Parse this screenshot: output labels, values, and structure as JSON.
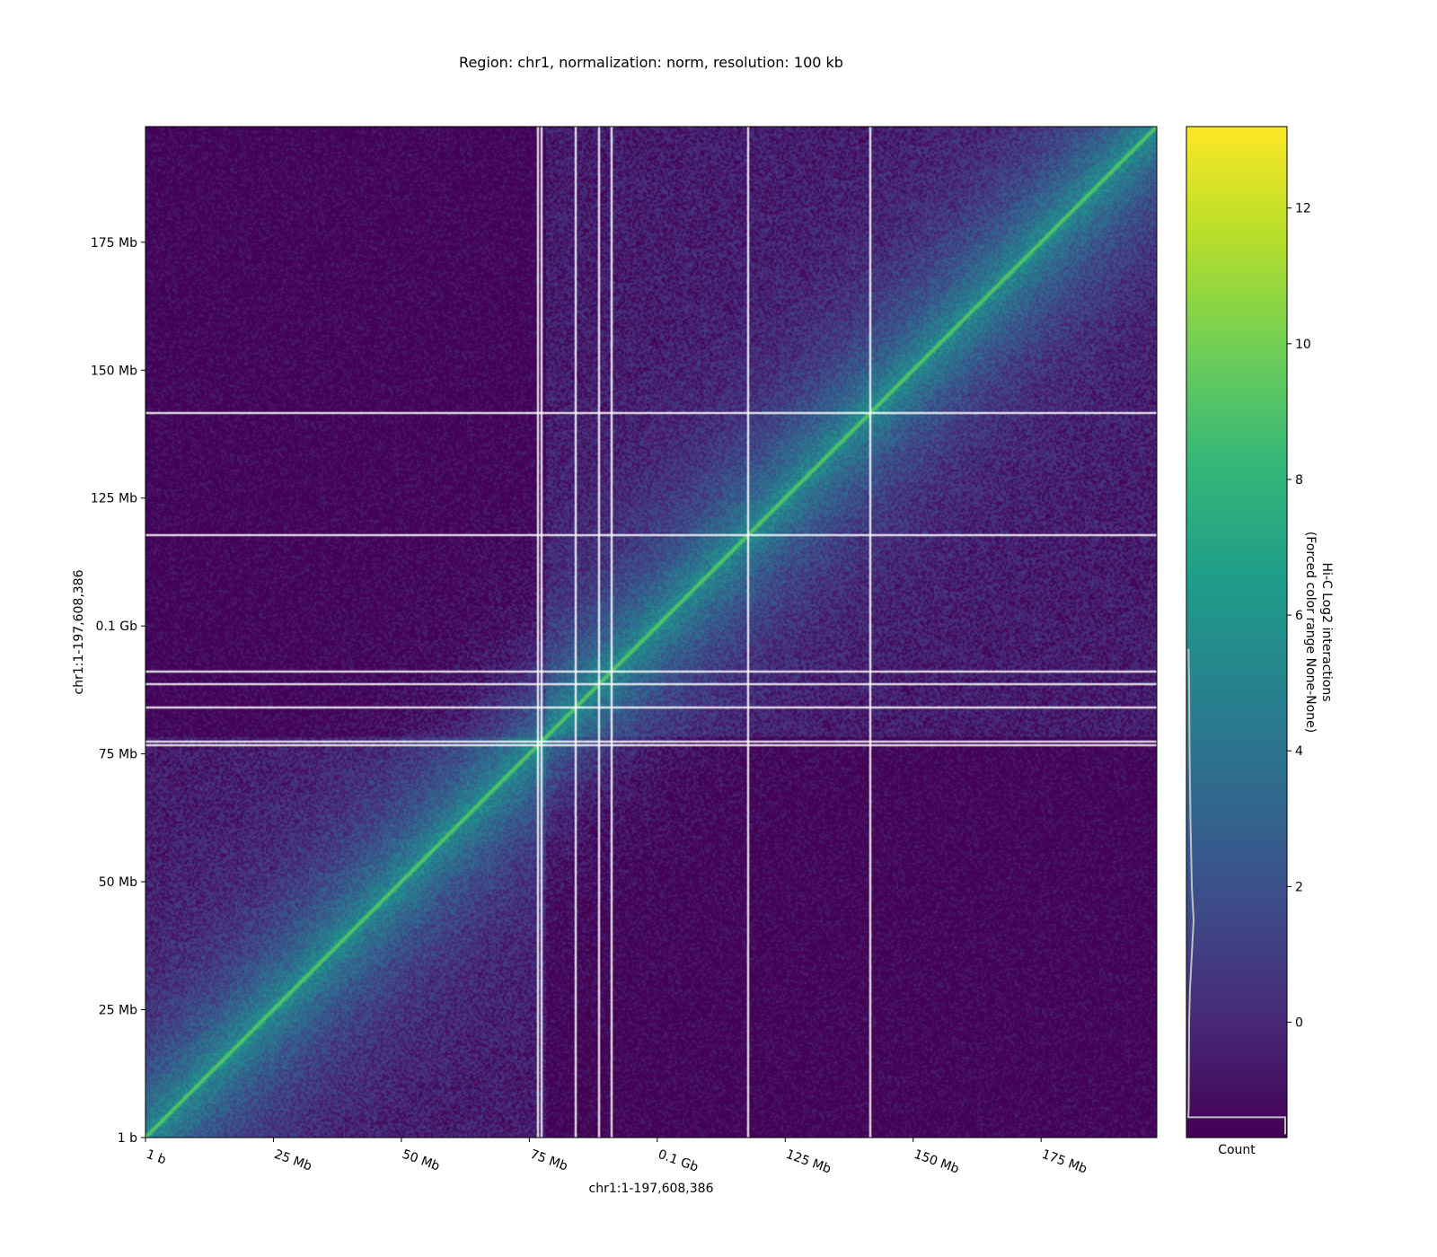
{
  "chart_data": [
    {
      "type": "heatmap",
      "title": "Region: chr1, normalization: norm, resolution: 100 kb",
      "xlabel": "chr1:1-197,608,386",
      "ylabel": "chr1:1-197,608,386",
      "x_range_bp": [
        1,
        197608386
      ],
      "y_range_bp": [
        1,
        197608386
      ],
      "resolution": "100 kb",
      "x_ticks": [
        {
          "value": 1,
          "label": "1 b"
        },
        {
          "value": 25000000,
          "label": "25 Mb"
        },
        {
          "value": 50000000,
          "label": "50 Mb"
        },
        {
          "value": 75000000,
          "label": "75 Mb"
        },
        {
          "value": 100000000,
          "label": "0.1 Gb"
        },
        {
          "value": 125000000,
          "label": "125 Mb"
        },
        {
          "value": 150000000,
          "label": "150 Mb"
        },
        {
          "value": 175000000,
          "label": "175 Mb"
        }
      ],
      "y_ticks": [
        {
          "value": 1,
          "label": "1 b"
        },
        {
          "value": 25000000,
          "label": "25 Mb"
        },
        {
          "value": 50000000,
          "label": "50 Mb"
        },
        {
          "value": 75000000,
          "label": "75 Mb"
        },
        {
          "value": 100000000,
          "label": "0.1 Gb"
        },
        {
          "value": 125000000,
          "label": "125 Mb"
        },
        {
          "value": 150000000,
          "label": "150 Mb"
        },
        {
          "value": 175000000,
          "label": "175 Mb"
        }
      ],
      "gap_positions_bp": [
        76500000,
        77100000,
        84000000,
        88500000,
        91000000,
        117500000,
        141500000
      ],
      "colormap": "viridis",
      "grid": false
    },
    {
      "type": "colorbar",
      "label_line1": "Hi-C Log2 interactions",
      "label_line2": "(Forced color range None-None)",
      "xlabel": "Count",
      "range": [
        -1.7,
        13.2
      ],
      "ticks": [
        {
          "value": 0,
          "label": "0"
        },
        {
          "value": 2,
          "label": "2"
        },
        {
          "value": 4,
          "label": "4"
        },
        {
          "value": 6,
          "label": "6"
        },
        {
          "value": 8,
          "label": "8"
        },
        {
          "value": 10,
          "label": "10"
        },
        {
          "value": 12,
          "label": "12"
        }
      ],
      "histogram_color": "#bfbfbf"
    }
  ]
}
